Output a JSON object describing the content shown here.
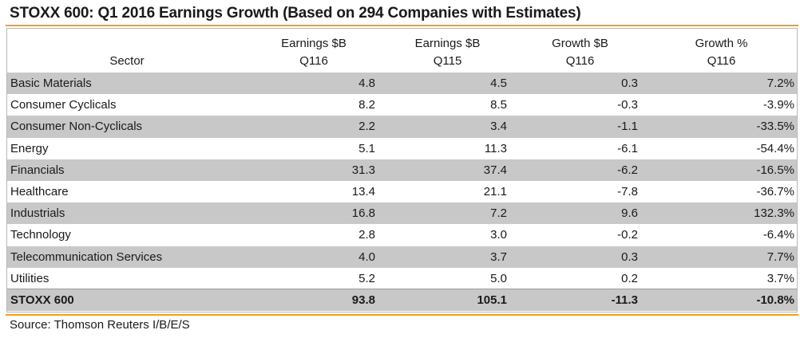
{
  "title": "STOXX 600: Q1 2016 Earnings Growth (Based on 294 Companies with Estimates)",
  "colors": {
    "accent_rule": "#f0a020",
    "shaded_row": "#c8c8c8",
    "border": "#b8b8b8"
  },
  "headers": [
    {
      "line1": "",
      "line2": "Sector"
    },
    {
      "line1": "Earnings $B",
      "line2": "Q116"
    },
    {
      "line1": "Earnings $B",
      "line2": "Q115"
    },
    {
      "line1": "Growth $B",
      "line2": "Q116"
    },
    {
      "line1": "Growth %",
      "line2": "Q116"
    }
  ],
  "rows": [
    {
      "sector": "Basic Materials",
      "earn_q116": "4.8",
      "earn_q115": "4.5",
      "growth_b": "0.3",
      "growth_pct": "7.2%"
    },
    {
      "sector": "Consumer Cyclicals",
      "earn_q116": "8.2",
      "earn_q115": "8.5",
      "growth_b": "-0.3",
      "growth_pct": "-3.9%"
    },
    {
      "sector": "Consumer Non-Cyclicals",
      "earn_q116": "2.2",
      "earn_q115": "3.4",
      "growth_b": "-1.1",
      "growth_pct": "-33.5%"
    },
    {
      "sector": "Energy",
      "earn_q116": "5.1",
      "earn_q115": "11.3",
      "growth_b": "-6.1",
      "growth_pct": "-54.4%"
    },
    {
      "sector": "Financials",
      "earn_q116": "31.3",
      "earn_q115": "37.4",
      "growth_b": "-6.2",
      "growth_pct": "-16.5%"
    },
    {
      "sector": "Healthcare",
      "earn_q116": "13.4",
      "earn_q115": "21.1",
      "growth_b": "-7.8",
      "growth_pct": "-36.7%"
    },
    {
      "sector": "Industrials",
      "earn_q116": "16.8",
      "earn_q115": "7.2",
      "growth_b": "9.6",
      "growth_pct": "132.3%"
    },
    {
      "sector": "Technology",
      "earn_q116": "2.8",
      "earn_q115": "3.0",
      "growth_b": "-0.2",
      "growth_pct": "-6.4%"
    },
    {
      "sector": "Telecommunication Services",
      "earn_q116": "4.0",
      "earn_q115": "3.7",
      "growth_b": "0.3",
      "growth_pct": "7.7%"
    },
    {
      "sector": "Utilities",
      "earn_q116": "5.2",
      "earn_q115": "5.0",
      "growth_b": "0.2",
      "growth_pct": "3.7%"
    }
  ],
  "total": {
    "sector": "STOXX 600",
    "earn_q116": "93.8",
    "earn_q115": "105.1",
    "growth_b": "-11.3",
    "growth_pct": "-10.8%"
  },
  "source": "Source: Thomson Reuters I/B/E/S"
}
